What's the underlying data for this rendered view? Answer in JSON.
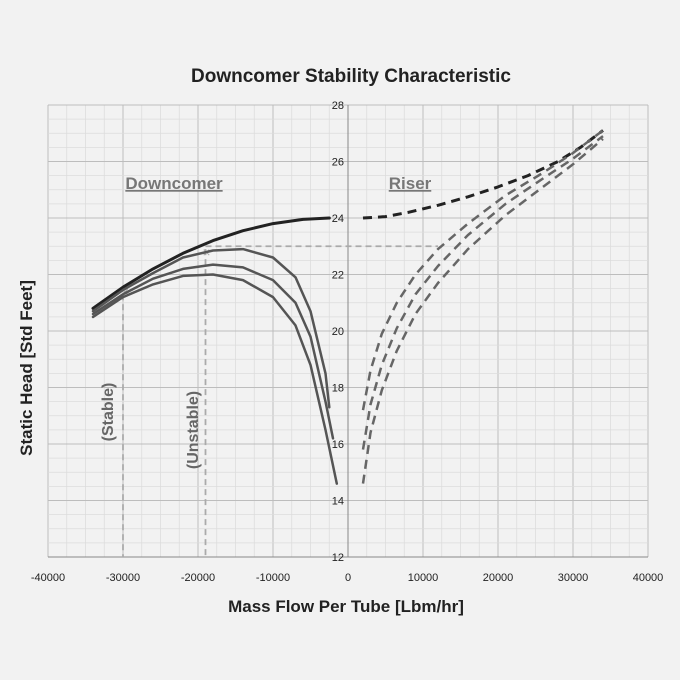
{
  "chart_data": {
    "type": "line",
    "title": "Downcomer Stability Characteristic",
    "xlabel": "Mass Flow Per Tube [Lbm/hr]",
    "ylabel": "Static Head [Std Feet]",
    "xlim": [
      -40000,
      40000
    ],
    "ylim": [
      12,
      28
    ],
    "x_ticks": [
      -40000,
      -30000,
      -20000,
      -10000,
      0,
      10000,
      20000,
      30000,
      40000
    ],
    "x_tick_labels": [
      "-40000",
      "-30000",
      "-20000",
      "-10000",
      "0",
      "10000",
      "20000",
      "30000",
      "40000"
    ],
    "y_ticks": [
      12,
      14,
      16,
      18,
      20,
      22,
      24,
      26,
      28
    ],
    "y_tick_labels": [
      "12",
      "14",
      "16",
      "18",
      "20",
      "22",
      "24",
      "26",
      "28"
    ],
    "grid": true,
    "region_labels": [
      "Downcomer",
      "Riser"
    ],
    "annotations": [
      "(Stable)",
      "(Unstable)"
    ],
    "annotation_x": [
      -30000,
      -19000
    ],
    "operating_level": 23.0,
    "operating_level_x": [
      -19000,
      12000
    ],
    "series": [
      {
        "style": "solid",
        "color": "#222222",
        "width": 3,
        "x": [
          -34000,
          -30000,
          -26000,
          -22000,
          -18000,
          -14000,
          -10000,
          -6000,
          -2500
        ],
        "y": [
          20.8,
          21.55,
          22.2,
          22.75,
          23.2,
          23.55,
          23.8,
          23.95,
          24.0
        ]
      },
      {
        "style": "solid",
        "color": "#555555",
        "width": 2.5,
        "x": [
          -34000,
          -30000,
          -26000,
          -22000,
          -18000,
          -14000,
          -10000,
          -7000,
          -5000,
          -3000,
          -2500
        ],
        "y": [
          20.7,
          21.45,
          22.05,
          22.6,
          22.85,
          22.9,
          22.6,
          21.9,
          20.7,
          18.5,
          17.3
        ]
      },
      {
        "style": "solid",
        "color": "#555555",
        "width": 2.5,
        "x": [
          -34000,
          -30000,
          -26000,
          -22000,
          -18000,
          -14000,
          -10000,
          -7000,
          -5000,
          -3000,
          -2000
        ],
        "y": [
          20.6,
          21.3,
          21.85,
          22.2,
          22.35,
          22.25,
          21.8,
          21.0,
          19.8,
          17.5,
          16.2
        ]
      },
      {
        "style": "solid",
        "color": "#555555",
        "width": 2.5,
        "x": [
          -34000,
          -30000,
          -26000,
          -22000,
          -18000,
          -14000,
          -10000,
          -7000,
          -5000,
          -3000,
          -1500
        ],
        "y": [
          20.5,
          21.2,
          21.65,
          21.95,
          22.0,
          21.8,
          21.2,
          20.2,
          18.8,
          16.5,
          14.6
        ]
      },
      {
        "style": "dashed",
        "color": "#222222",
        "width": 3,
        "x": [
          2000,
          5000,
          8000,
          12000,
          16000,
          20000,
          24000,
          28000,
          31000,
          34000
        ],
        "y": [
          24.0,
          24.05,
          24.2,
          24.45,
          24.75,
          25.1,
          25.5,
          26.0,
          26.5,
          27.1
        ]
      },
      {
        "style": "dashed",
        "color": "#666666",
        "width": 2.5,
        "x": [
          2000,
          3000,
          4500,
          6500,
          9000,
          12000,
          16000,
          21000,
          26000,
          30000,
          34000
        ],
        "y": [
          17.2,
          18.6,
          19.9,
          21.0,
          22.0,
          22.9,
          23.8,
          24.8,
          25.6,
          26.3,
          27.1
        ]
      },
      {
        "style": "dashed",
        "color": "#666666",
        "width": 2.5,
        "x": [
          2000,
          3000,
          4500,
          6500,
          9000,
          12000,
          16000,
          21000,
          26000,
          30000,
          34000
        ],
        "y": [
          15.8,
          17.4,
          18.8,
          20.1,
          21.3,
          22.3,
          23.4,
          24.5,
          25.4,
          26.1,
          26.9
        ]
      },
      {
        "style": "dashed",
        "color": "#666666",
        "width": 2.5,
        "x": [
          2000,
          3000,
          4500,
          6500,
          9000,
          12000,
          16000,
          21000,
          26000,
          30000,
          34000
        ],
        "y": [
          14.6,
          16.4,
          17.9,
          19.3,
          20.6,
          21.7,
          22.9,
          24.1,
          25.1,
          25.9,
          26.8
        ]
      }
    ]
  }
}
